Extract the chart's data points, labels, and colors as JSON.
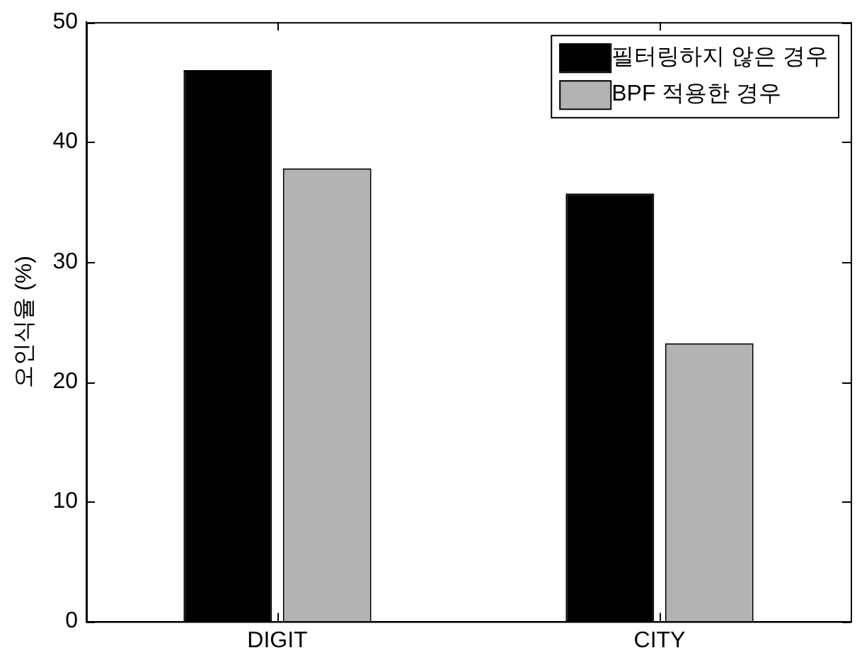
{
  "chart_data": {
    "type": "bar",
    "ylabel": "오인식율 (%)",
    "categories": [
      "DIGIT",
      "CITY"
    ],
    "series": [
      {
        "name": "필터링하지 않은 경우",
        "color": "#000000",
        "values": [
          46,
          35.7
        ]
      },
      {
        "name": "BPF 적용한 경우",
        "color": "#b3b3b3",
        "values": [
          37.8,
          23.2
        ]
      }
    ],
    "ylim": [
      0,
      50
    ],
    "yticks": [
      0,
      10,
      20,
      30,
      40,
      50
    ],
    "grid": false,
    "legend": "top right"
  }
}
